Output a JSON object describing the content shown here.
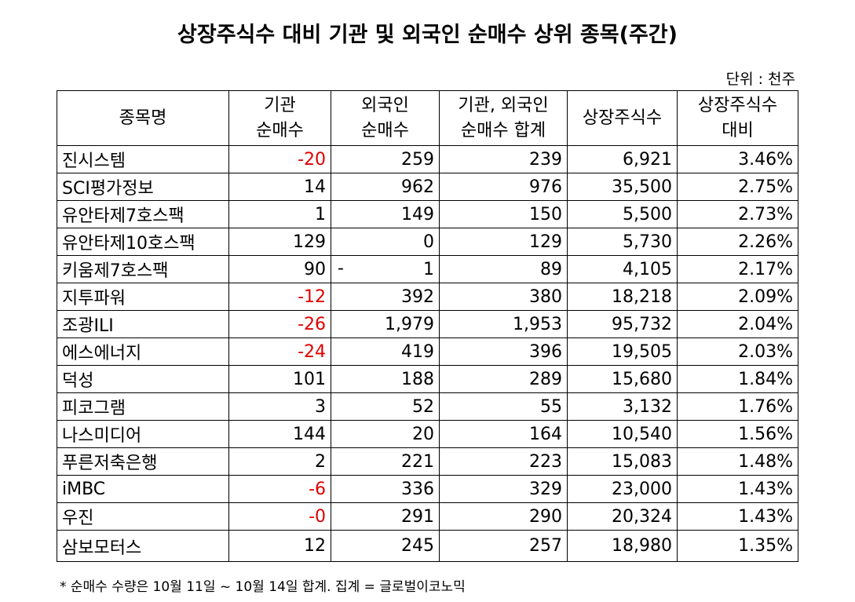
{
  "title": "상장주식수 대비 기관 및 외국인 순매수 상위 종목(주간)",
  "unit_label": "단위 : 천주",
  "headers": {
    "name": "종목명",
    "inst_l1": "기관",
    "inst_l2": "순매수",
    "foreign_l1": "외국인",
    "foreign_l2": "순매수",
    "sum_l1": "기관, 외국인",
    "sum_l2": "순매수 합계",
    "listed": "상장주식수",
    "ratio_l1": "상장주식수",
    "ratio_l2": "대비"
  },
  "rows": [
    {
      "name": "진시스템",
      "inst": "-20",
      "foreign": "259",
      "sum": "239",
      "listed": "6,921",
      "ratio": "3.46%"
    },
    {
      "name": "SCI평가정보",
      "inst": "14",
      "foreign": "962",
      "sum": "976",
      "listed": "35,500",
      "ratio": "2.75%"
    },
    {
      "name": "유안타제7호스팩",
      "inst": "1",
      "foreign": "149",
      "sum": "150",
      "listed": "5,500",
      "ratio": "2.73%"
    },
    {
      "name": "유안타제10호스팩",
      "inst": "129",
      "foreign": "0",
      "sum": "129",
      "listed": "5,730",
      "ratio": "2.26%"
    },
    {
      "name": "키움제7호스팩",
      "inst": "90",
      "foreign_dash": "-",
      "foreign": "1",
      "sum": "89",
      "listed": "4,105",
      "ratio": "2.17%"
    },
    {
      "name": "지투파워",
      "inst": "-12",
      "foreign": "392",
      "sum": "380",
      "listed": "18,218",
      "ratio": "2.09%"
    },
    {
      "name": "조광ILI",
      "inst": "-26",
      "foreign": "1,979",
      "sum": "1,953",
      "listed": "95,732",
      "ratio": "2.04%"
    },
    {
      "name": "에스에너지",
      "inst": "-24",
      "foreign": "419",
      "sum": "396",
      "listed": "19,505",
      "ratio": "2.03%"
    },
    {
      "name": "덕성",
      "inst": "101",
      "foreign": "188",
      "sum": "289",
      "listed": "15,680",
      "ratio": "1.84%"
    },
    {
      "name": "피코그램",
      "inst": "3",
      "foreign": "52",
      "sum": "55",
      "listed": "3,132",
      "ratio": "1.76%"
    },
    {
      "name": "나스미디어",
      "inst": "144",
      "foreign": "20",
      "sum": "164",
      "listed": "10,540",
      "ratio": "1.56%"
    },
    {
      "name": "푸른저축은행",
      "inst": "2",
      "foreign": "221",
      "sum": "223",
      "listed": "15,083",
      "ratio": "1.48%"
    },
    {
      "name": "iMBC",
      "inst": "-6",
      "foreign": "336",
      "sum": "329",
      "listed": "23,000",
      "ratio": "1.43%"
    },
    {
      "name": "우진",
      "inst": "-0",
      "foreign": "291",
      "sum": "290",
      "listed": "20,324",
      "ratio": "1.43%"
    },
    {
      "name": "삼보모터스",
      "inst": "12",
      "foreign": "245",
      "sum": "257",
      "listed": "18,980",
      "ratio": "1.35%"
    }
  ],
  "colors": {
    "negative": "#e00000",
    "text": "#000000",
    "border": "#000000"
  },
  "footnote": "* 순매수 수량은 10월 11일 ~ 10월 14일 합계.  집계 = 글로벌이코노믹"
}
